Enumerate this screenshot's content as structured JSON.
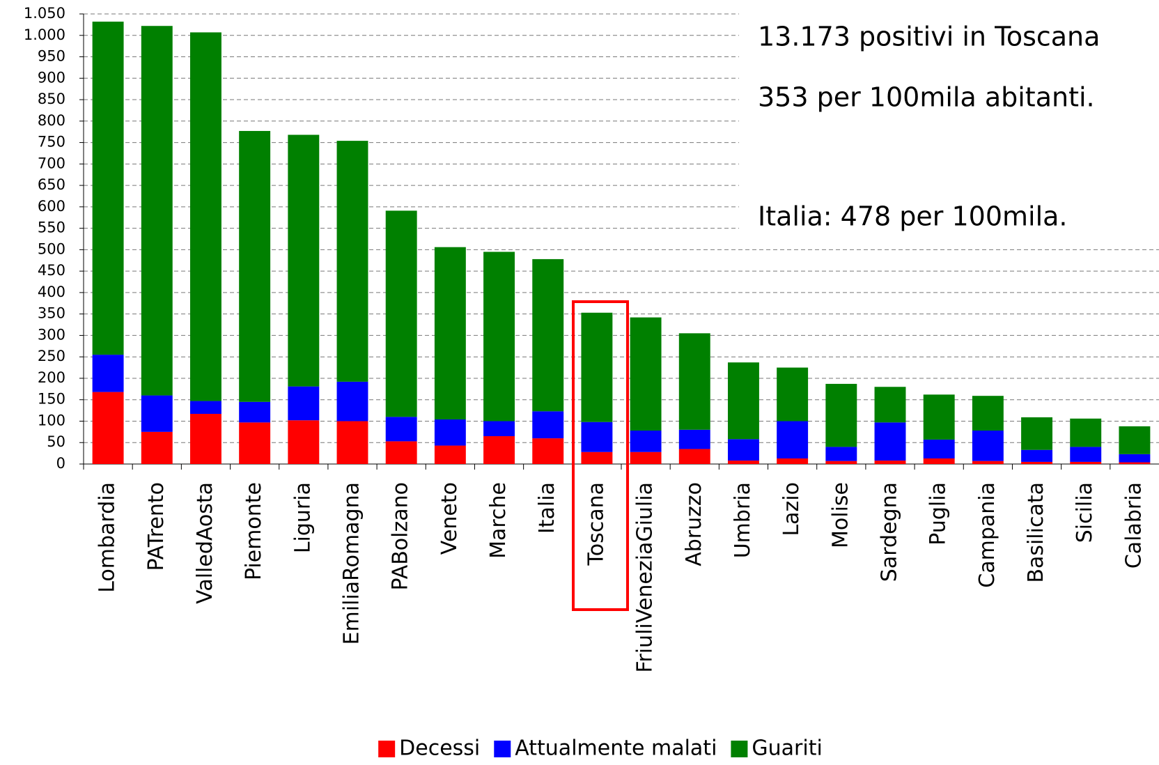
{
  "chart_data": {
    "type": "stacked_bar",
    "categories": [
      "Lombardia",
      "PATrento",
      "ValledAosta",
      "Piemonte",
      "Liguria",
      "EmiliaRomagna",
      "PABolzano",
      "Veneto",
      "Marche",
      "Italia",
      "Toscana",
      "FriuliVeneziaGiulia",
      "Abruzzo",
      "Umbria",
      "Lazio",
      "Molise",
      "Sardegna",
      "Puglia",
      "Campania",
      "Basilicata",
      "Sicilia",
      "Calabria"
    ],
    "series": [
      {
        "name": "Decessi",
        "color": "#ff0000",
        "values": [
          168,
          75,
          117,
          97,
          102,
          100,
          53,
          43,
          65,
          60,
          28,
          28,
          35,
          8,
          13,
          7,
          8,
          13,
          7,
          5,
          5,
          4
        ]
      },
      {
        "name": "Attualmente malati",
        "color": "#0000ff",
        "values": [
          87,
          85,
          30,
          48,
          79,
          92,
          57,
          61,
          35,
          63,
          70,
          50,
          45,
          50,
          87,
          33,
          89,
          44,
          71,
          28,
          35,
          19
        ]
      },
      {
        "name": "Guariti",
        "color": "#008000",
        "values": [
          777,
          862,
          860,
          632,
          587,
          562,
          481,
          402,
          395,
          355,
          255,
          264,
          225,
          179,
          125,
          147,
          83,
          105,
          81,
          76,
          66,
          65
        ]
      }
    ],
    "ylim": [
      0,
      1050
    ],
    "yticks": [
      0,
      50,
      100,
      150,
      200,
      250,
      300,
      350,
      400,
      450,
      500,
      550,
      600,
      650,
      700,
      750,
      800,
      850,
      900,
      950,
      {
        "value": 1000,
        "label": "1.000"
      },
      {
        "value": 1050,
        "label": "1.050"
      }
    ],
    "grid": true,
    "legend": "bottom",
    "annotations": [
      "13.173 positivi in Toscana",
      "353 per 100mila abitanti.",
      "Italia: 478 per 100mila."
    ]
  }
}
